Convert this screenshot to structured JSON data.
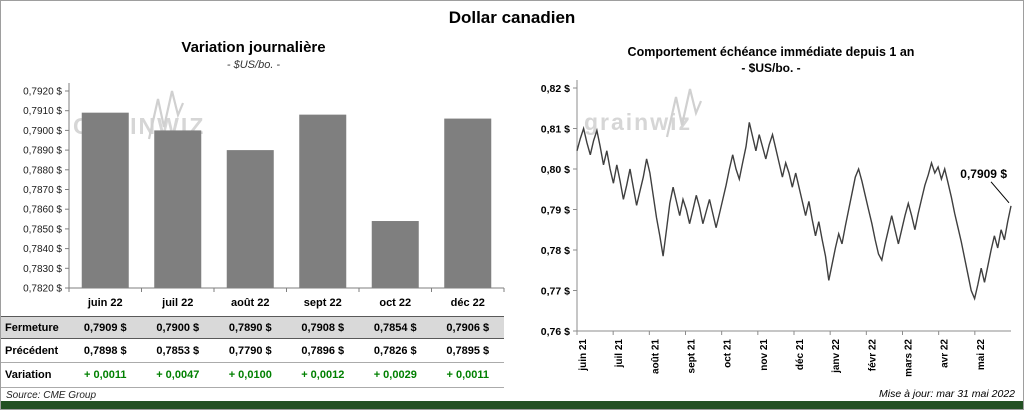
{
  "page": {
    "title": "Dollar canadien",
    "source_note": "Source: CME Group",
    "update_note": "Mise à jour: mar 31 mai 2022"
  },
  "watermarks": {
    "left_text": "GRAINWIZ",
    "right_text": "grainwiz",
    "color": "#d6d6d6"
  },
  "colors": {
    "bar": "#7f7f7f",
    "line": "#3f3f3f",
    "variation_green": "#008000",
    "table_header_bg": "#d9d9d9",
    "bottom_bar": "#235023"
  },
  "chart_data": [
    {
      "type": "bar",
      "title": "Variation journalière",
      "subtitle": "- $US/bo. -",
      "categories": [
        "juin 22",
        "juil 22",
        "août 22",
        "sept 22",
        "oct 22",
        "déc 22"
      ],
      "values": [
        0.7909,
        0.79,
        0.789,
        0.7908,
        0.7854,
        0.7906
      ],
      "ylim": [
        0.782,
        0.792
      ],
      "y_tick_labels": [
        "0,7920 $",
        "0,7910 $",
        "0,7900 $",
        "0,7890 $",
        "0,7880 $",
        "0,7870 $",
        "0,7860 $",
        "0,7850 $",
        "0,7840 $",
        "0,7830 $",
        "0,7820 $"
      ],
      "grid": false,
      "legend": false
    },
    {
      "type": "line",
      "title": "Comportement échéance immédiate depuis 1 an",
      "subtitle": "- $US/bo. -",
      "x_tick_labels": [
        "juin 21",
        "juil 21",
        "août 21",
        "sept 21",
        "oct 21",
        "nov 21",
        "déc 21",
        "janv 22",
        "févr 22",
        "mars 22",
        "avr 22",
        "mai 22"
      ],
      "ylim": [
        0.76,
        0.82
      ],
      "y_tick_labels": [
        "0,82 $",
        "0,81 $",
        "0,80 $",
        "0,79 $",
        "0,78 $",
        "0,77 $",
        "0,76 $"
      ],
      "annotation": "0,7909 $",
      "grid": false,
      "legend": false,
      "values": [
        0.8045,
        0.8075,
        0.81,
        0.8065,
        0.8035,
        0.807,
        0.8095,
        0.8055,
        0.801,
        0.8045,
        0.8,
        0.7965,
        0.801,
        0.797,
        0.7925,
        0.796,
        0.8,
        0.7955,
        0.791,
        0.7945,
        0.798,
        0.8025,
        0.799,
        0.7935,
        0.788,
        0.7835,
        0.7785,
        0.785,
        0.7915,
        0.7955,
        0.792,
        0.7885,
        0.7925,
        0.79,
        0.7865,
        0.79,
        0.7935,
        0.7905,
        0.7865,
        0.7895,
        0.7925,
        0.789,
        0.7855,
        0.789,
        0.7925,
        0.796,
        0.8,
        0.8035,
        0.8,
        0.7975,
        0.8015,
        0.8055,
        0.8115,
        0.808,
        0.8045,
        0.8085,
        0.8055,
        0.8025,
        0.806,
        0.8085,
        0.805,
        0.8015,
        0.798,
        0.8015,
        0.799,
        0.7955,
        0.799,
        0.7955,
        0.792,
        0.7885,
        0.792,
        0.7875,
        0.7835,
        0.787,
        0.7825,
        0.7785,
        0.7725,
        0.7765,
        0.7805,
        0.784,
        0.7815,
        0.786,
        0.79,
        0.794,
        0.798,
        0.8,
        0.797,
        0.7935,
        0.79,
        0.7865,
        0.7825,
        0.779,
        0.7775,
        0.7815,
        0.785,
        0.7885,
        0.785,
        0.7815,
        0.785,
        0.7885,
        0.7915,
        0.7885,
        0.785,
        0.789,
        0.7925,
        0.796,
        0.7985,
        0.8015,
        0.799,
        0.8005,
        0.7975,
        0.8,
        0.7965,
        0.793,
        0.789,
        0.7855,
        0.782,
        0.778,
        0.774,
        0.77,
        0.768,
        0.7715,
        0.7755,
        0.772,
        0.776,
        0.78,
        0.7835,
        0.7805,
        0.785,
        0.7825,
        0.787,
        0.7909
      ]
    }
  ],
  "table": {
    "rows": [
      {
        "label": "Fermeture",
        "style": "fermeture",
        "values": [
          "0,7909 $",
          "0,7900 $",
          "0,7890 $",
          "0,7908 $",
          "0,7854 $",
          "0,7906 $"
        ]
      },
      {
        "label": "Précédent",
        "style": "precedent",
        "values": [
          "0,7898 $",
          "0,7853 $",
          "0,7790 $",
          "0,7896 $",
          "0,7826 $",
          "0,7895 $"
        ]
      },
      {
        "label": "Variation",
        "style": "variation",
        "values": [
          "+ 0,0011",
          "+ 0,0047",
          "+ 0,0100",
          "+ 0,0012",
          "+ 0,0029",
          "+ 0,0011"
        ]
      }
    ]
  }
}
